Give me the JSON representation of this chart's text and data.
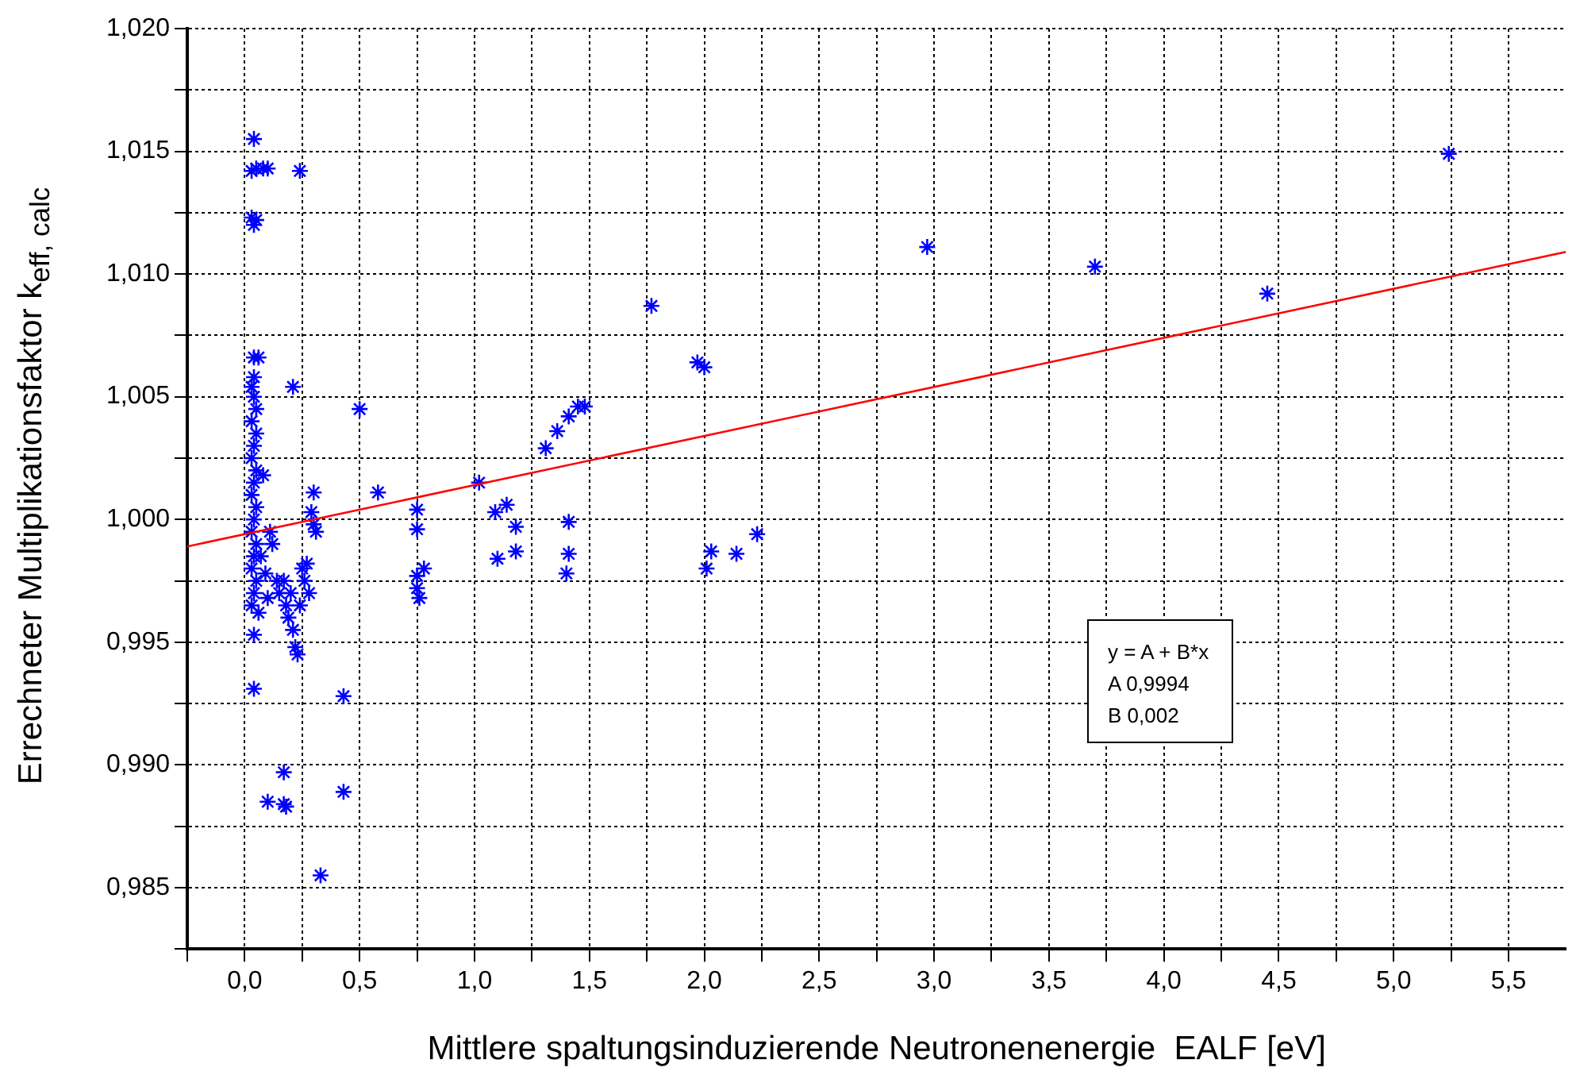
{
  "chart_data": {
    "type": "scatter",
    "xlabel": "Mittlere spaltungsinduzierende Neutronenenergie  EALF [eV]",
    "ylabel": "Errechneter Multiplikationsfaktor k$_{eff, calc}$",
    "annotations": [
      "y = A + B*x",
      "A   0,9994",
      "B   0,002"
    ],
    "series": [
      {
        "color": "#0000ff",
        "marker": "cross",
        "x": [
          0.04,
          0.03,
          0.05,
          0.08,
          0.1,
          0.24,
          0.03,
          0.04,
          0.05,
          0.04,
          0.06,
          0.04,
          0.03,
          0.04,
          0.05,
          0.03,
          0.05,
          0.04,
          0.03,
          0.05,
          0.04,
          0.03,
          0.05,
          0.04,
          0.03,
          0.05,
          0.04,
          0.03,
          0.05,
          0.04,
          0.03,
          0.06,
          0.04,
          0.04,
          0.07,
          0.08,
          0.09,
          0.1,
          0.12,
          0.11,
          0.14,
          0.15,
          0.21,
          0.5,
          0.17,
          0.18,
          0.19,
          0.2,
          0.21,
          0.22,
          0.23,
          0.24,
          0.25,
          0.26,
          0.27,
          0.28,
          0.3,
          0.29,
          0.3,
          0.31,
          0.43,
          0.43,
          0.33,
          0.17,
          0.1,
          0.17,
          0.18,
          0.58,
          0.75,
          0.75,
          0.75,
          0.75,
          0.76,
          0.78,
          1.77,
          1.97,
          2.0,
          1.31,
          1.36,
          1.41,
          1.45,
          1.48,
          1.02,
          1.09,
          1.14,
          1.18,
          1.1,
          1.18,
          1.41,
          1.41,
          1.4,
          2.03,
          2.01,
          2.14,
          2.23,
          2.97,
          3.7,
          4.45,
          5.24
        ],
        "values": [
          1.0155,
          1.0142,
          1.0143,
          1.0143,
          1.0143,
          1.0142,
          1.0123,
          1.012,
          1.0122,
          1.0066,
          1.0066,
          1.0058,
          1.0054,
          1.005,
          1.0045,
          1.004,
          1.0035,
          1.003,
          1.0025,
          1.002,
          1.0015,
          1.001,
          1.0005,
          1.0,
          0.9995,
          0.999,
          0.9985,
          0.998,
          0.9975,
          0.997,
          0.9965,
          0.9962,
          0.9953,
          0.9931,
          0.9985,
          1.0018,
          0.9978,
          0.9968,
          0.999,
          0.9995,
          0.9975,
          0.997,
          1.0054,
          1.0045,
          0.9975,
          0.9965,
          0.996,
          0.997,
          0.9955,
          0.9948,
          0.9945,
          0.9965,
          0.998,
          0.9975,
          0.9982,
          0.997,
          1.0011,
          1.0003,
          0.9998,
          0.9995,
          0.9928,
          0.9889,
          0.9855,
          0.9897,
          0.9885,
          0.9884,
          0.9883,
          1.0011,
          1.0004,
          0.9996,
          0.9977,
          0.9972,
          0.9968,
          0.998,
          1.0087,
          1.0064,
          1.0062,
          1.0029,
          1.0036,
          1.0042,
          1.0046,
          1.0046,
          1.0015,
          1.0003,
          1.0006,
          0.9997,
          0.9984,
          0.9987,
          0.9999,
          0.9986,
          0.9978,
          0.9987,
          0.998,
          0.9986,
          0.9994,
          1.0111,
          1.0103,
          1.0092,
          1.0149
        ]
      },
      {
        "type": "line",
        "color": "#ff0000",
        "marker": "none",
        "line_style": "solid",
        "x": [
          -0.25,
          5.75
        ],
        "values": [
          0.9989,
          1.0109
        ]
      }
    ],
    "xlim": [
      -0.25,
      5.75
    ],
    "xticks": [
      {
        "value": -0.25,
        "label": null
      },
      {
        "value": 0,
        "label": "0,0"
      },
      {
        "value": 0.25,
        "label": null
      },
      {
        "value": 0.5,
        "label": "0,5"
      },
      {
        "value": 0.75,
        "label": null
      },
      {
        "value": 1,
        "label": "1,0"
      },
      {
        "value": 1.25,
        "label": null
      },
      {
        "value": 1.5,
        "label": "1,5"
      },
      {
        "value": 1.75,
        "label": null
      },
      {
        "value": 2,
        "label": "2,0"
      },
      {
        "value": 2.25,
        "label": null
      },
      {
        "value": 2.5,
        "label": "2,5"
      },
      {
        "value": 2.75,
        "label": null
      },
      {
        "value": 3,
        "label": "3,0"
      },
      {
        "value": 3.25,
        "label": null
      },
      {
        "value": 3.5,
        "label": "3,5"
      },
      {
        "value": 3.75,
        "label": null
      },
      {
        "value": 4,
        "label": "4,0"
      },
      {
        "value": 4.25,
        "label": null
      },
      {
        "value": 4.5,
        "label": "4,5"
      },
      {
        "value": 4.75,
        "label": null
      },
      {
        "value": 5,
        "label": "5,0"
      },
      {
        "value": 5.25,
        "label": null
      },
      {
        "value": 5.5,
        "label": "5,5"
      }
    ],
    "ylim": [
      0.9825,
      1.02
    ],
    "yticks": [
      {
        "value": 0.9825,
        "label": null
      },
      {
        "value": 0.985,
        "label": "0,985"
      },
      {
        "value": 0.9875,
        "label": null
      },
      {
        "value": 0.99,
        "label": "0,990"
      },
      {
        "value": 0.9925,
        "label": null
      },
      {
        "value": 0.995,
        "label": "0,995"
      },
      {
        "value": 0.9975,
        "label": null
      },
      {
        "value": 1.0,
        "label": "1,000"
      },
      {
        "value": 1.0025,
        "label": null
      },
      {
        "value": 1.005,
        "label": "1,005"
      },
      {
        "value": 1.0075,
        "label": null
      },
      {
        "value": 1.01,
        "label": "1,010"
      },
      {
        "value": 1.0125,
        "label": null
      },
      {
        "value": 1.015,
        "label": "1,015"
      },
      {
        "value": 1.0175,
        "label": null
      },
      {
        "value": 1.02,
        "label": "1,020"
      }
    ],
    "grid": true,
    "legend": false
  }
}
